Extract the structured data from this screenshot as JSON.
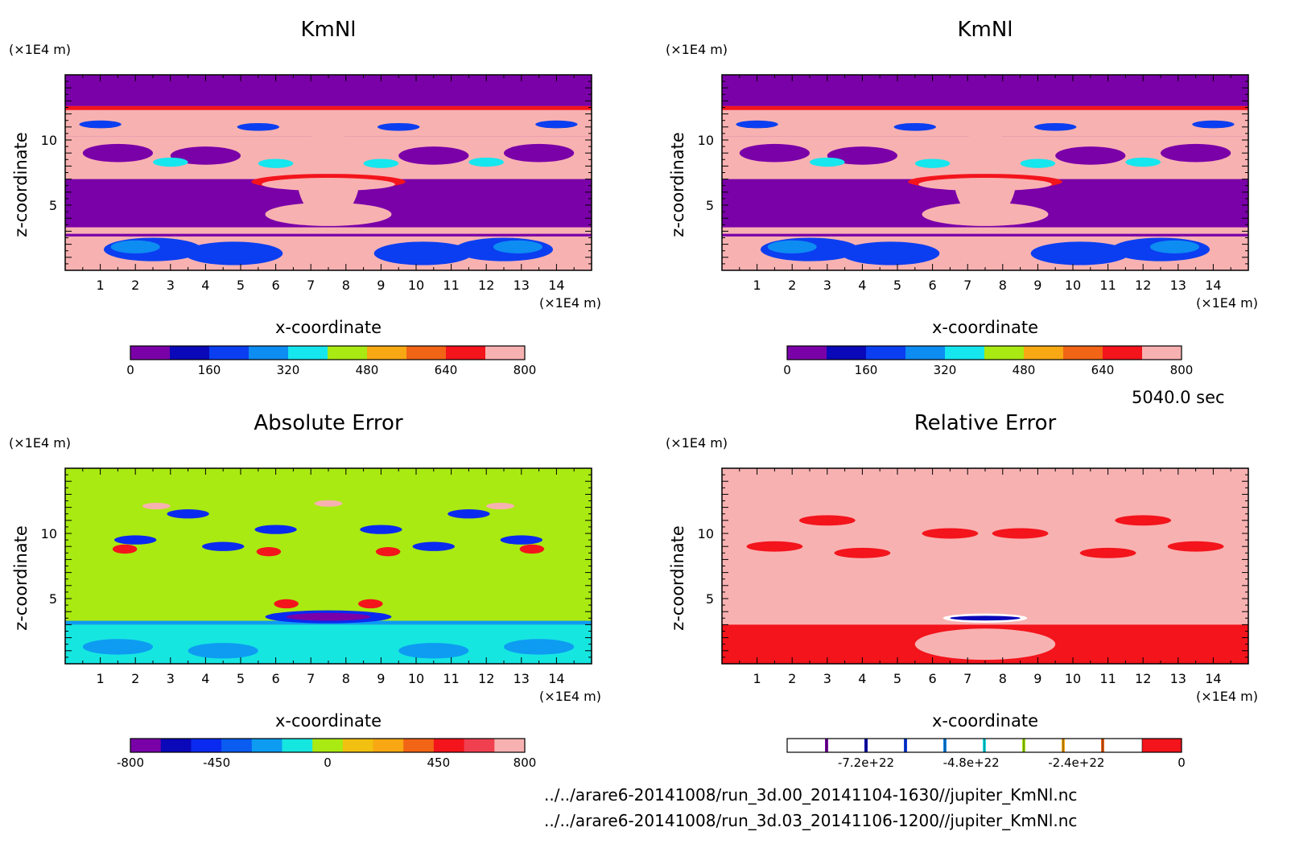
{
  "time_label": "5040.0 sec",
  "file_paths": [
    "../../arare6-20141008/run_3d.00_20141104-1630//jupiter_KmNl.nc",
    "../../arare6-20141008/run_3d.03_20141106-1200//jupiter_KmNl.nc"
  ],
  "chart_data": [
    {
      "type": "heatmap",
      "title": "KmNl",
      "xlabel": "x-coordinate",
      "ylabel": "z-coordinate",
      "x_unit": "(×1E4 m)",
      "y_unit": "(×1E4 m)",
      "xlim": [
        0,
        15
      ],
      "ylim": [
        0,
        15
      ],
      "x_ticks": [
        "1",
        "2",
        "3",
        "4",
        "5",
        "6",
        "7",
        "8",
        "9",
        "10",
        "11",
        "12",
        "13",
        "14"
      ],
      "y_ticks": [
        "5",
        "10"
      ],
      "colorbar": {
        "min": 0,
        "max": 800,
        "tick_labels": [
          "0",
          "160",
          "320",
          "480",
          "640",
          "800"
        ],
        "colors": [
          "#7a00a8",
          "#0a08b8",
          "#0b3ef0",
          "#0d8cf2",
          "#16e6ee",
          "#a9ea12",
          "#f7a813",
          "#f26416",
          "#f3141c",
          "#f8b1b1"
        ]
      }
    },
    {
      "type": "heatmap",
      "title": "KmNl",
      "xlabel": "x-coordinate",
      "ylabel": "z-coordinate",
      "x_unit": "(×1E4 m)",
      "y_unit": "(×1E4 m)",
      "xlim": [
        0,
        15
      ],
      "ylim": [
        0,
        15
      ],
      "x_ticks": [
        "1",
        "2",
        "3",
        "4",
        "5",
        "6",
        "7",
        "8",
        "9",
        "10",
        "11",
        "12",
        "13",
        "14"
      ],
      "y_ticks": [
        "5",
        "10"
      ],
      "colorbar": {
        "min": 0,
        "max": 800,
        "tick_labels": [
          "0",
          "160",
          "320",
          "480",
          "640",
          "800"
        ],
        "colors": [
          "#7a00a8",
          "#0a08b8",
          "#0b3ef0",
          "#0d8cf2",
          "#16e6ee",
          "#a9ea12",
          "#f7a813",
          "#f26416",
          "#f3141c",
          "#f8b1b1"
        ]
      }
    },
    {
      "type": "heatmap",
      "title": "Absolute Error",
      "xlabel": "x-coordinate",
      "ylabel": "z-coordinate",
      "x_unit": "(×1E4 m)",
      "y_unit": "(×1E4 m)",
      "xlim": [
        0,
        15
      ],
      "ylim": [
        0,
        15
      ],
      "x_ticks": [
        "1",
        "2",
        "3",
        "4",
        "5",
        "6",
        "7",
        "8",
        "9",
        "10",
        "11",
        "12",
        "13",
        "14"
      ],
      "y_ticks": [
        "5",
        "10"
      ],
      "colorbar": {
        "min": -800,
        "max": 800,
        "tick_labels": [
          "-800",
          "-450",
          "0",
          "450",
          "800"
        ],
        "colors": [
          "#7a00a8",
          "#0a08b8",
          "#0b2af0",
          "#0b5cf0",
          "#0d9cf2",
          "#16e6e0",
          "#a9ea12",
          "#f2c010",
          "#f7a813",
          "#f26416",
          "#f3141c",
          "#f04050",
          "#f8b1b1"
        ]
      }
    },
    {
      "type": "heatmap",
      "title": "Relative Error",
      "xlabel": "x-coordinate",
      "ylabel": "z-coordinate",
      "x_unit": "(×1E4 m)",
      "y_unit": "(×1E4 m)",
      "xlim": [
        0,
        15
      ],
      "ylim": [
        0,
        15
      ],
      "x_ticks": [
        "1",
        "2",
        "3",
        "4",
        "5",
        "6",
        "7",
        "8",
        "9",
        "10",
        "11",
        "12",
        "13",
        "14"
      ],
      "y_ticks": [
        "5",
        "10"
      ],
      "colorbar": {
        "min": -9e+22,
        "max": 0,
        "tick_labels": [
          "-7.2e+22",
          "-4.8e+22",
          "-2.4e+22",
          "0"
        ],
        "colors": [
          "#ffffff",
          "#ffffff",
          "#ffffff",
          "#ffffff",
          "#ffffff",
          "#ffffff",
          "#ffffff",
          "#ffffff",
          "#ffffff",
          "#f3141c"
        ],
        "marker_colors": [
          "#7a00a8",
          "#0a08b8",
          "#0b3ef0",
          "#0d8cf2",
          "#16e6ee",
          "#a9ea12",
          "#f7a813",
          "#f26416"
        ]
      }
    }
  ]
}
